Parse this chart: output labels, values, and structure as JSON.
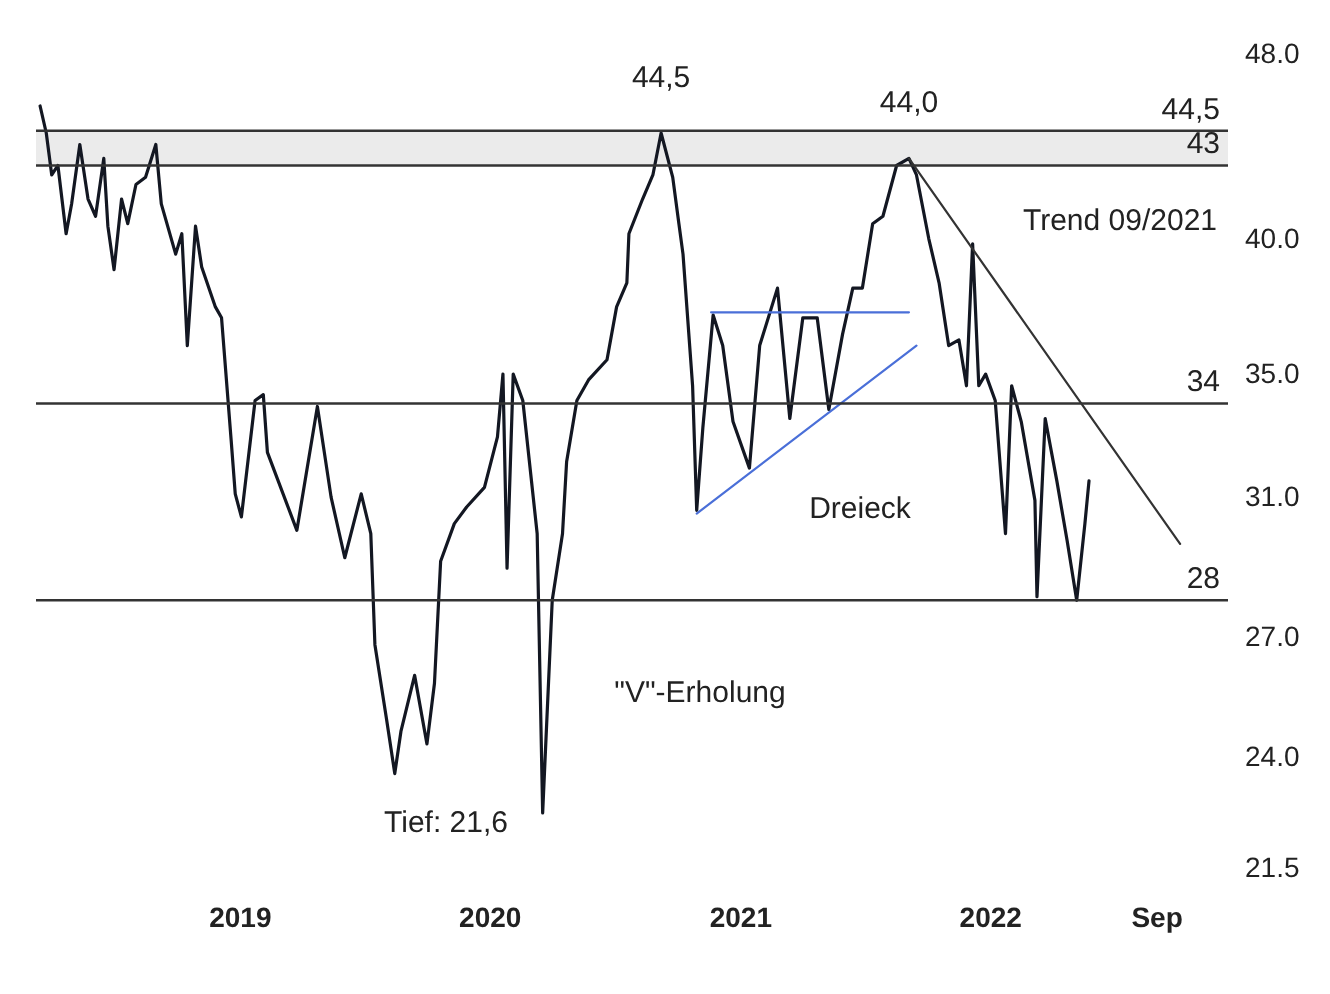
{
  "chart_data": {
    "type": "line",
    "log": "y",
    "xlim": [
      "2018-03-10",
      "2022-12-15"
    ],
    "xticks": [
      "2019",
      "2020",
      "2021",
      "2022",
      {
        "value": "2022-09",
        "label": "Sep"
      }
    ],
    "ylim": [
      21.5,
      48
    ],
    "yticks": [
      {
        "value": 21.5,
        "label": "21.5"
      },
      {
        "value": 24,
        "label": "24.0"
      },
      {
        "value": 27,
        "label": "27.0"
      },
      {
        "value": 31,
        "label": "31.0"
      },
      {
        "value": 35,
        "label": "35.0"
      },
      {
        "value": 40,
        "label": "40.0"
      },
      {
        "value": 48,
        "label": "48.0"
      }
    ],
    "series": [
      {
        "color": "#131722",
        "x": [
          "2018-03-16",
          "2018-03-25",
          "2018-04-02",
          "2018-04-11",
          "2018-04-23",
          "2018-05-01",
          "2018-05-13",
          "2018-05-25",
          "2018-06-05",
          "2018-06-17",
          "2018-06-23",
          "2018-07-02",
          "2018-07-13",
          "2018-07-22",
          "2018-08-03",
          "2018-08-17",
          "2018-09-01",
          "2018-09-09",
          "2018-09-30",
          "2018-10-09",
          "2018-10-17",
          "2018-10-29",
          "2018-11-07",
          "2018-11-27",
          "2018-12-06",
          "2018-12-20",
          "2018-12-26",
          "2019-01-04",
          "2019-01-24",
          "2019-02-05",
          "2019-02-11",
          "2019-03-26",
          "2019-04-25",
          "2019-05-15",
          "2019-06-04",
          "2019-06-28",
          "2019-07-12",
          "2019-07-18",
          "2019-08-04",
          "2019-08-16",
          "2019-08-25",
          "2019-09-14",
          "2019-10-02",
          "2019-10-13",
          "2019-10-22",
          "2019-11-11",
          "2019-11-29",
          "2019-12-25",
          "2020-01-13",
          "2020-01-21",
          "2020-01-27",
          "2020-02-05",
          "2020-02-19",
          "2020-03-11",
          "2020-03-19",
          "2020-04-02",
          "2020-04-17",
          "2020-04-23",
          "2020-05-08",
          "2020-05-25",
          "2020-06-21",
          "2020-07-05",
          "2020-07-20",
          "2020-07-23",
          "2020-08-12",
          "2020-08-27",
          "2020-09-08",
          "2020-09-25",
          "2020-10-04",
          "2020-10-10",
          "2020-10-24",
          "2020-10-30",
          "2020-11-08",
          "2020-11-23",
          "2020-12-07",
          "2020-12-22",
          "2021-01-15",
          "2021-01-30",
          "2021-02-25",
          "2021-03-15",
          "2021-04-03",
          "2021-04-24",
          "2021-05-11",
          "2021-05-31",
          "2021-06-15",
          "2021-06-29",
          "2021-07-14",
          "2021-07-29",
          "2021-08-18",
          "2021-09-05",
          "2021-09-16",
          "2021-10-04",
          "2021-10-19",
          "2021-11-02",
          "2021-11-17",
          "2021-11-28",
          "2021-12-07",
          "2021-12-16",
          "2021-12-26",
          "2022-01-09",
          "2022-01-18",
          "2022-01-24",
          "2022-02-02",
          "2022-02-16",
          "2022-03-08",
          "2022-03-11",
          "2022-03-23",
          "2022-04-09",
          "2022-04-24",
          "2022-05-08",
          "2022-05-20",
          "2022-05-26"
        ],
        "values": [
          45.6,
          44.4,
          42.6,
          43.0,
          40.2,
          41.4,
          43.9,
          41.6,
          40.9,
          43.3,
          40.5,
          38.8,
          41.6,
          40.6,
          42.2,
          42.5,
          43.9,
          41.4,
          39.4,
          40.2,
          36.0,
          40.5,
          38.9,
          37.4,
          37.0,
          32.8,
          31.1,
          30.4,
          34.1,
          34.3,
          32.4,
          30.0,
          33.9,
          31.0,
          29.2,
          31.1,
          29.9,
          26.8,
          24.9,
          23.6,
          24.6,
          26.0,
          24.3,
          25.8,
          29.1,
          30.2,
          30.7,
          31.3,
          32.9,
          35.0,
          28.9,
          35.0,
          34.1,
          29.9,
          22.7,
          28.0,
          29.9,
          32.1,
          34.1,
          34.8,
          35.5,
          37.4,
          38.3,
          40.2,
          41.6,
          42.6,
          44.4,
          42.5,
          40.6,
          39.4,
          34.6,
          30.6,
          33.2,
          37.1,
          36.0,
          33.4,
          31.9,
          36.0,
          38.1,
          33.5,
          37.0,
          37.0,
          33.8,
          36.4,
          38.1,
          38.1,
          40.6,
          40.9,
          43.0,
          43.3,
          42.6,
          40.0,
          38.3,
          36.0,
          36.2,
          34.6,
          39.8,
          34.6,
          35.0,
          34.1,
          31.5,
          29.9,
          34.6,
          33.4,
          30.9,
          28.1,
          33.5,
          31.5,
          29.7,
          28.0,
          30.2,
          31.5
        ]
      },
      {
        "type": "line",
        "color": "#333333",
        "x": [
          "2021-09-05",
          "2022-10-06"
        ],
        "values": [
          43.3,
          29.6
        ]
      },
      {
        "type": "line",
        "color": "#4a6fd8",
        "x": [
          "2020-11-20",
          "2021-09-05"
        ],
        "values": [
          37.2,
          37.2
        ]
      },
      {
        "type": "line",
        "color": "#4a6fd8",
        "x": [
          "2020-10-30",
          "2021-09-16"
        ],
        "values": [
          30.5,
          36.0
        ]
      }
    ],
    "bands": [
      {
        "axis": "y",
        "from": 43,
        "to": 44.5,
        "color": "#ebebeb"
      }
    ],
    "ref_lines": [
      {
        "axis": "y",
        "value": 44.5,
        "label": "44,5",
        "color": "#333333"
      },
      {
        "axis": "y",
        "value": 43,
        "label": "43",
        "color": "#333333"
      },
      {
        "axis": "y",
        "value": 34,
        "label": "34",
        "color": "#333333"
      },
      {
        "axis": "y",
        "value": 28,
        "label": "28",
        "color": "#333333"
      }
    ],
    "annotations": [
      {
        "text": "44,5",
        "x": "2020-09-08",
        "y": 44.4
      },
      {
        "text": "44,0",
        "x": "2021-09-05",
        "y": 43.3
      },
      "Trend 09/2021",
      "Dreieck",
      "\"V\"-Erholung",
      "Tief: 21,6"
    ]
  }
}
